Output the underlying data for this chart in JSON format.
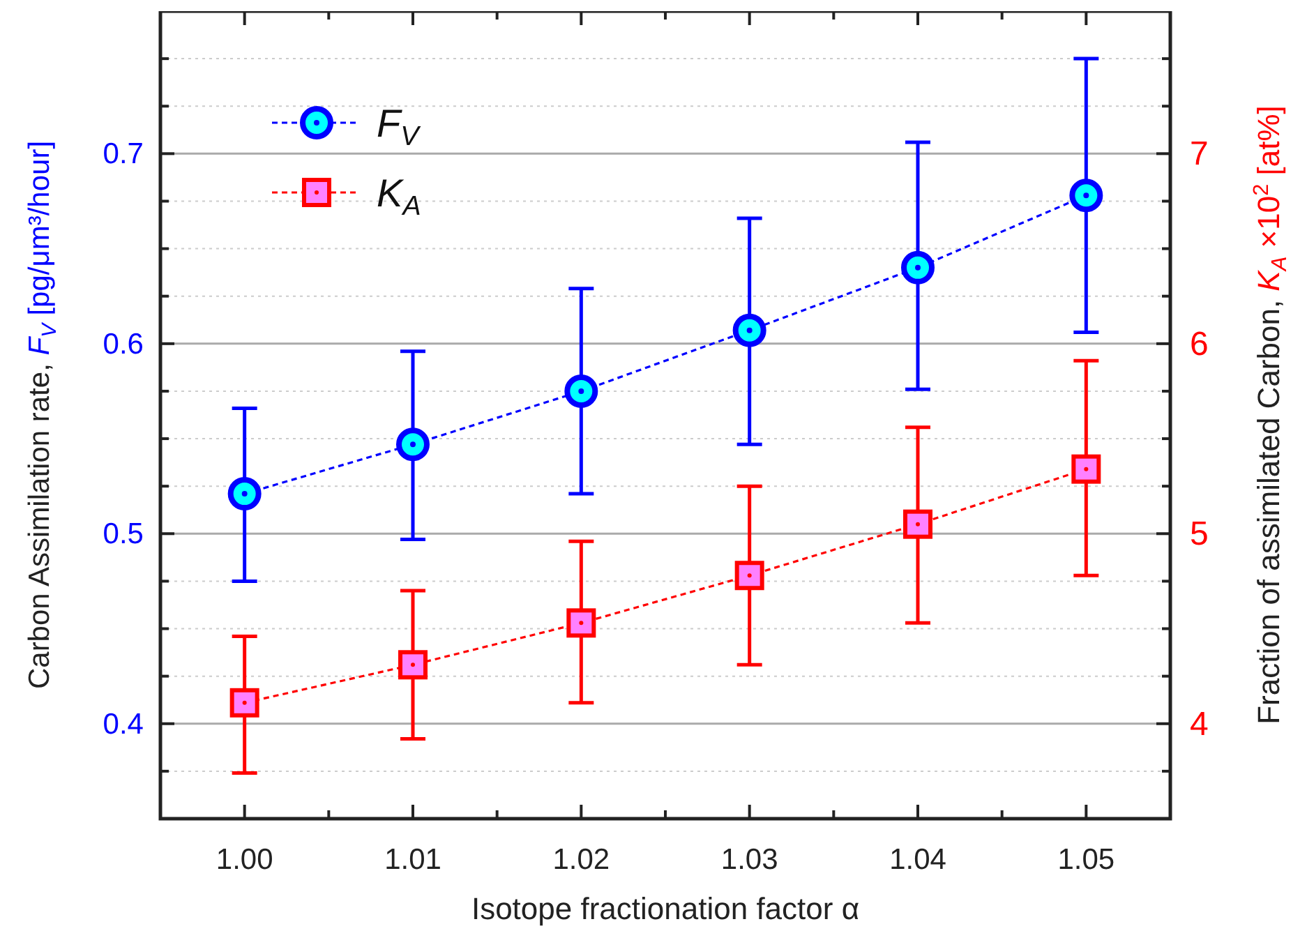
{
  "chart_data": {
    "type": "line",
    "xlabel": "Isotope fractionation factor α",
    "ylabel": "Carbon Assimilation rate,  F$_{V}$  [pg/μm³/hour]",
    "y2label": "Fraction of assimilated Carbon,  K$_{A}$ ×10$^{2}$  [at%]",
    "x": [
      1.0,
      1.01,
      1.02,
      1.03,
      1.04,
      1.05
    ],
    "xlim": [
      0.995,
      1.055
    ],
    "xticks": [
      {
        "value": 1.0,
        "label": "1.00"
      },
      {
        "value": 1.005,
        "label": null
      },
      {
        "value": 1.01,
        "label": "1.01"
      },
      {
        "value": 1.015,
        "label": null
      },
      {
        "value": 1.02,
        "label": "1.02"
      },
      {
        "value": 1.025,
        "label": null
      },
      {
        "value": 1.03,
        "label": "1.03"
      },
      {
        "value": 1.035,
        "label": null
      },
      {
        "value": 1.04,
        "label": "1.04"
      },
      {
        "value": 1.045,
        "label": null
      },
      {
        "value": 1.05,
        "label": "1.05"
      }
    ],
    "ylim": [
      0.35,
      0.775
    ],
    "yticks": [
      {
        "value": 0.375,
        "label": null
      },
      0.4,
      {
        "value": 0.425,
        "label": null
      },
      {
        "value": 0.45,
        "label": null
      },
      {
        "value": 0.475,
        "label": null
      },
      0.5,
      {
        "value": 0.525,
        "label": null
      },
      {
        "value": 0.55,
        "label": null
      },
      {
        "value": 0.575,
        "label": null
      },
      0.6,
      {
        "value": 0.625,
        "label": null
      },
      {
        "value": 0.65,
        "label": null
      },
      {
        "value": 0.675,
        "label": null
      },
      0.7,
      {
        "value": 0.725,
        "label": null
      },
      {
        "value": 0.75,
        "label": null
      }
    ],
    "y2lim": [
      3.5,
      7.75
    ],
    "y2ticks": [
      {
        "value": 3.75,
        "label": null
      },
      4,
      {
        "value": 4.25,
        "label": null
      },
      {
        "value": 4.5,
        "label": null
      },
      {
        "value": 4.75,
        "label": null
      },
      5,
      {
        "value": 5.25,
        "label": null
      },
      {
        "value": 5.5,
        "label": null
      },
      {
        "value": 5.75,
        "label": null
      },
      6,
      {
        "value": 6.25,
        "label": null
      },
      {
        "value": 6.5,
        "label": null
      },
      {
        "value": 6.75,
        "label": null
      },
      7,
      {
        "value": 7.25,
        "label": null
      },
      {
        "value": 7.5,
        "label": null
      }
    ],
    "grid": "y",
    "legend": "top left",
    "line_style": "dashed",
    "series": [
      {
        "name": "F$_{V}$",
        "color": "#0000ff",
        "marker": "circle",
        "values": [
          0.521,
          0.547,
          0.575,
          0.607,
          0.64,
          0.678
        ],
        "errors": [
          [
            0.475,
            0.566
          ],
          [
            0.497,
            0.596
          ],
          [
            0.521,
            0.629
          ],
          [
            0.547,
            0.666
          ],
          [
            0.576,
            0.706
          ],
          [
            0.606,
            0.75
          ]
        ]
      },
      {
        "name": "K$_{A}$",
        "color": "#ff0000",
        "marker": "square",
        "axis": "y2",
        "values": [
          4.11,
          4.31,
          4.53,
          4.78,
          5.05,
          5.34
        ],
        "errors": [
          [
            3.74,
            4.46
          ],
          [
            3.92,
            4.7
          ],
          [
            4.11,
            4.96
          ],
          [
            4.31,
            5.25
          ],
          [
            4.53,
            5.56
          ],
          [
            4.78,
            5.91
          ]
        ]
      }
    ]
  }
}
